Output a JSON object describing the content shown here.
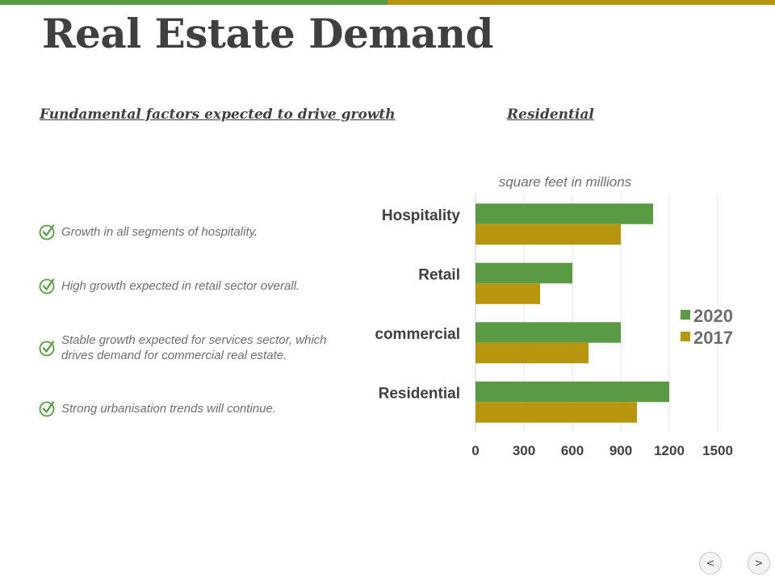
{
  "slide": {
    "title": "Real Estate Demand",
    "left_heading": "Fundamental factors expected to drive growth",
    "right_heading": "Residential",
    "bullets": [
      "Growth in all segments of hospitality.",
      "High growth expected in retail sector overall.",
      "Stable growth expected for services sector, which drives demand for commercial real estate.",
      "Strong urbanisation trends will continue."
    ]
  },
  "nav": {
    "prev_label": "<",
    "next_label": ">"
  },
  "colors": {
    "green": "#5b9a45",
    "gold": "#b8950f",
    "text": "#404040"
  },
  "chart_data": {
    "type": "bar",
    "orientation": "horizontal",
    "title": "square feet in millions",
    "categories": [
      "Hospitality",
      "Retail",
      "commercial",
      "Residential"
    ],
    "series": [
      {
        "name": "2020",
        "color": "#5b9a45",
        "values": [
          1100,
          600,
          900,
          1200
        ]
      },
      {
        "name": "2017",
        "color": "#b8950f",
        "values": [
          900,
          400,
          700,
          1000
        ]
      }
    ],
    "xlim": [
      0,
      1500
    ],
    "xticks": [
      0,
      300,
      600,
      900,
      1200,
      1500
    ],
    "grid": true,
    "legend": "right"
  }
}
